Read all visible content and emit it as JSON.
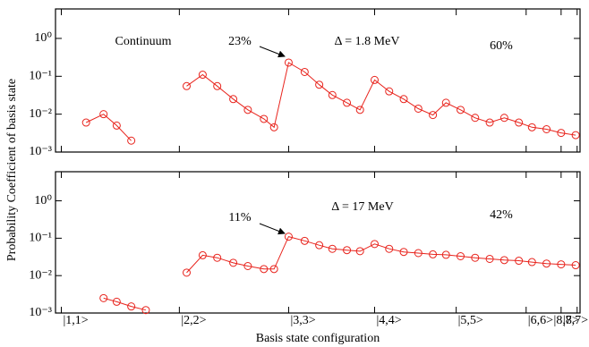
{
  "ylabel": "Probability Coefficient of basis state",
  "xlabel": "Basis state configuration",
  "chart_data": [
    {
      "type": "line",
      "log_y": true,
      "color": "#e8231c",
      "annotations": [
        "Continuum",
        "23%",
        "Δ = 1.8 MeV",
        "60%"
      ],
      "xlim": [
        0,
        36
      ],
      "ylim": [
        0.001,
        6
      ],
      "xticks": [
        0.4,
        8.5,
        16,
        21.9,
        27.5,
        32.3,
        34.7,
        35.8
      ],
      "yticks": [
        {
          "value": 0.001,
          "label": "10⁻³"
        },
        {
          "value": 0.01,
          "label": "10⁻²"
        },
        {
          "value": 0.1,
          "label": "10⁻¹"
        },
        {
          "value": 1,
          "label": "10⁰"
        }
      ],
      "x": [
        2.1,
        3.3,
        4.2,
        5.2,
        null,
        9.0,
        10.1,
        11.1,
        12.2,
        13.2,
        14.3,
        15.0,
        16.0,
        17.1,
        18.1,
        19.0,
        20.0,
        20.9,
        21.9,
        22.9,
        23.9,
        24.9,
        25.9,
        26.8,
        27.8,
        28.8,
        29.8,
        30.8,
        31.8,
        32.7,
        33.7,
        34.7,
        35.7
      ],
      "values": [
        0.006,
        0.01,
        0.005,
        0.002,
        null,
        0.055,
        0.11,
        0.055,
        0.025,
        0.013,
        0.0075,
        0.0045,
        0.23,
        0.13,
        0.06,
        0.032,
        0.02,
        0.013,
        0.08,
        0.04,
        0.025,
        0.014,
        0.0095,
        0.02,
        0.013,
        0.008,
        0.006,
        0.008,
        0.006,
        0.0045,
        0.004,
        0.0032,
        0.0028
      ]
    },
    {
      "type": "line",
      "log_y": true,
      "color": "#e8231c",
      "annotations": [
        "11%",
        "Δ = 17 MeV",
        "42%"
      ],
      "xlim": [
        0,
        36
      ],
      "ylim": [
        0.001,
        6
      ],
      "xticks": [
        {
          "value": 0.4,
          "label": "|1,1>"
        },
        {
          "value": 8.5,
          "label": "|2,2>"
        },
        {
          "value": 16,
          "label": "|3,3>"
        },
        {
          "value": 21.9,
          "label": "|4,4>"
        },
        {
          "value": 27.5,
          "label": "|5,5>"
        },
        {
          "value": 32.3,
          "label": "|6,6>"
        },
        {
          "value": 34.7,
          "label": "|7,7>"
        },
        {
          "value": 35.8,
          "label": "|8,8>"
        }
      ],
      "yticks": [
        {
          "value": 0.001,
          "label": "10⁻³"
        },
        {
          "value": 0.01,
          "label": "10⁻²"
        },
        {
          "value": 0.1,
          "label": "10⁻¹"
        },
        {
          "value": 1,
          "label": "10⁰"
        }
      ],
      "x": [
        3.3,
        4.2,
        5.2,
        6.2,
        null,
        9.0,
        10.1,
        11.1,
        12.2,
        13.2,
        14.3,
        15.0,
        16.0,
        17.1,
        18.1,
        19.0,
        20.0,
        20.9,
        21.9,
        22.9,
        23.9,
        24.9,
        25.9,
        26.8,
        27.8,
        28.8,
        29.8,
        30.8,
        31.8,
        32.7,
        33.7,
        34.7,
        35.7
      ],
      "values": [
        0.0025,
        0.002,
        0.0015,
        0.0012,
        null,
        0.012,
        0.035,
        0.03,
        0.022,
        0.018,
        0.015,
        0.015,
        0.11,
        0.085,
        0.065,
        0.052,
        0.048,
        0.045,
        0.07,
        0.052,
        0.043,
        0.04,
        0.037,
        0.036,
        0.033,
        0.03,
        0.028,
        0.026,
        0.025,
        0.023,
        0.021,
        0.02,
        0.019
      ]
    }
  ]
}
